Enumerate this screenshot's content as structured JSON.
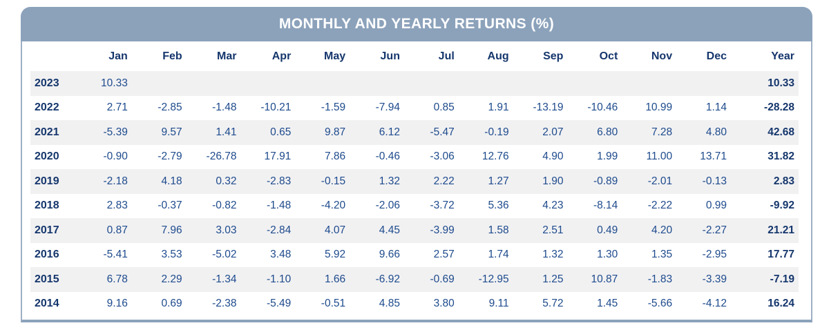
{
  "card": {
    "title": "MONTHLY AND YEARLY RETURNS (%)"
  },
  "colors": {
    "header_bar": "#8CA2BB",
    "card_border": "#9DAFC4",
    "title_text": "#FFFFFF",
    "heading_text": "#15366C",
    "data_text": "#1D4A8C",
    "row_stripe": "#F1F1F2",
    "background": "#FFFFFF"
  },
  "chart_data": {
    "type": "table",
    "title": "MONTHLY AND YEARLY RETURNS (%)",
    "columns": [
      "",
      "Jan",
      "Feb",
      "Mar",
      "Apr",
      "May",
      "Jun",
      "Jul",
      "Aug",
      "Sep",
      "Oct",
      "Nov",
      "Dec",
      "Year"
    ],
    "rows": [
      {
        "year": "2023",
        "monthly": [
          "10.33",
          "",
          "",
          "",
          "",
          "",
          "",
          "",
          "",
          "",
          "",
          ""
        ],
        "yearly": "10.33"
      },
      {
        "year": "2022",
        "monthly": [
          "2.71",
          "-2.85",
          "-1.48",
          "-10.21",
          "-1.59",
          "-7.94",
          "0.85",
          "1.91",
          "-13.19",
          "-10.46",
          "10.99",
          "1.14"
        ],
        "yearly": "-28.28"
      },
      {
        "year": "2021",
        "monthly": [
          "-5.39",
          "9.57",
          "1.41",
          "0.65",
          "9.87",
          "6.12",
          "-5.47",
          "-0.19",
          "2.07",
          "6.80",
          "7.28",
          "4.80"
        ],
        "yearly": "42.68"
      },
      {
        "year": "2020",
        "monthly": [
          "-0.90",
          "-2.79",
          "-26.78",
          "17.91",
          "7.86",
          "-0.46",
          "-3.06",
          "12.76",
          "4.90",
          "1.99",
          "11.00",
          "13.71"
        ],
        "yearly": "31.82"
      },
      {
        "year": "2019",
        "monthly": [
          "-2.18",
          "4.18",
          "0.32",
          "-2.83",
          "-0.15",
          "1.32",
          "2.22",
          "1.27",
          "1.90",
          "-0.89",
          "-2.01",
          "-0.13"
        ],
        "yearly": "2.83"
      },
      {
        "year": "2018",
        "monthly": [
          "2.83",
          "-0.37",
          "-0.82",
          "-1.48",
          "-4.20",
          "-2.06",
          "-3.72",
          "5.36",
          "4.23",
          "-8.14",
          "-2.22",
          "0.99"
        ],
        "yearly": "-9.92"
      },
      {
        "year": "2017",
        "monthly": [
          "0.87",
          "7.96",
          "3.03",
          "-2.84",
          "4.07",
          "4.45",
          "-3.99",
          "1.58",
          "2.51",
          "0.49",
          "4.20",
          "-2.27"
        ],
        "yearly": "21.21"
      },
      {
        "year": "2016",
        "monthly": [
          "-5.41",
          "3.53",
          "-5.02",
          "3.48",
          "5.92",
          "9.66",
          "2.57",
          "1.74",
          "1.32",
          "1.30",
          "1.35",
          "-2.95"
        ],
        "yearly": "17.77"
      },
      {
        "year": "2015",
        "monthly": [
          "6.78",
          "2.29",
          "-1.34",
          "-1.10",
          "1.66",
          "-6.92",
          "-0.69",
          "-12.95",
          "1.25",
          "10.87",
          "-1.83",
          "-3.39"
        ],
        "yearly": "-7.19"
      },
      {
        "year": "2014",
        "monthly": [
          "9.16",
          "0.69",
          "-2.38",
          "-5.49",
          "-0.51",
          "4.85",
          "3.80",
          "9.11",
          "5.72",
          "1.45",
          "-5.66",
          "-4.12"
        ],
        "yearly": "16.24"
      }
    ]
  }
}
